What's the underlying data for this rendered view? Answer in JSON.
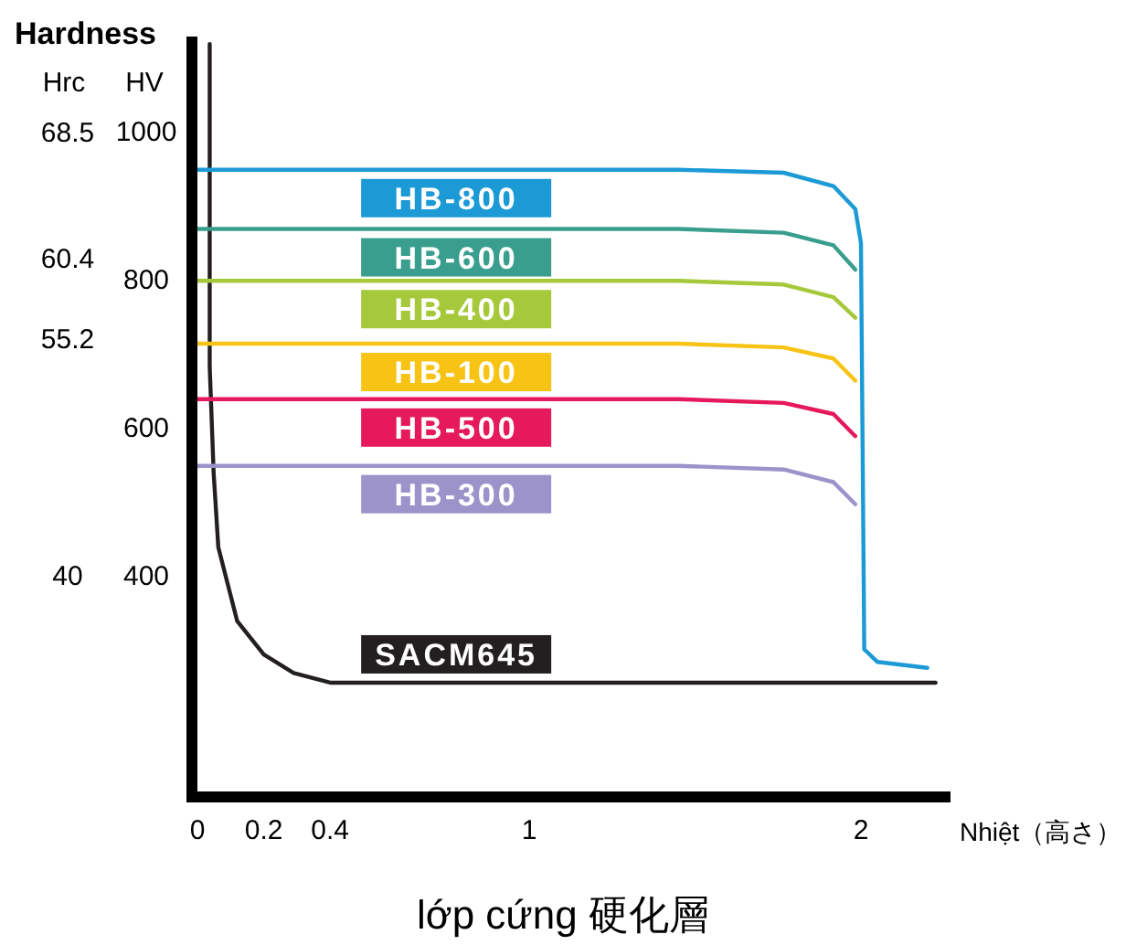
{
  "chart_data": {
    "type": "line",
    "title": "Hardness",
    "ylabel": "HV",
    "y2label": "Hrc",
    "xlabel": "Nhiệt（高さ）",
    "annotations": [
      "lớp cứng 硬化層"
    ],
    "xlim": [
      0,
      2.27
    ],
    "ylim": [
      110,
      1130
    ],
    "y2lim": [
      26.2,
      74.7
    ],
    "xticks": [
      0,
      0.2,
      0.4,
      1.0,
      2.0
    ],
    "yticks": [
      400,
      600,
      800,
      1000
    ],
    "y2ticks": [
      40,
      55.2,
      60.4,
      68.5
    ],
    "legend": false,
    "marker": "none",
    "line_style": "solid",
    "grid": false,
    "series": [
      {
        "name": "HB-800",
        "color": "#1b9ad6",
        "x": [
          0,
          1.45,
          1.767,
          1.917,
          1.983,
          2.0,
          2.01,
          2.05,
          2.2
        ],
        "values": [
          950,
          950,
          946,
          928,
          897,
          851,
          302,
          285,
          277
        ]
      },
      {
        "name": "HB-600",
        "color": "#3a9e8f",
        "x": [
          0,
          1.45,
          1.767,
          1.917,
          1.983
        ],
        "values": [
          870,
          870,
          865,
          848,
          815
        ]
      },
      {
        "name": "HB-400",
        "color": "#a5c93a",
        "x": [
          0,
          1.45,
          1.767,
          1.917,
          1.983
        ],
        "values": [
          800,
          800,
          795,
          778,
          750
        ]
      },
      {
        "name": "HB-100",
        "color": "#f7c416",
        "x": [
          0,
          1.45,
          1.767,
          1.917,
          1.983
        ],
        "values": [
          715,
          715,
          710,
          695,
          665
        ]
      },
      {
        "name": "HB-500",
        "color": "#e6195a",
        "x": [
          0,
          1.45,
          1.767,
          1.917,
          1.983
        ],
        "values": [
          640,
          640,
          635,
          620,
          590
        ]
      },
      {
        "name": "HB-300",
        "color": "#9b93c9",
        "x": [
          0,
          1.45,
          1.767,
          1.917,
          1.983
        ],
        "values": [
          550,
          550,
          545,
          528,
          498
        ]
      },
      {
        "name": "SACM645",
        "color": "#231f20",
        "x": [
          0.037,
          0.037,
          0.049,
          0.063,
          0.12,
          0.2,
          0.29,
          0.4,
          2.225
        ],
        "values": [
          1120,
          684,
          540,
          440,
          340,
          295,
          270,
          257,
          257
        ]
      }
    ]
  }
}
